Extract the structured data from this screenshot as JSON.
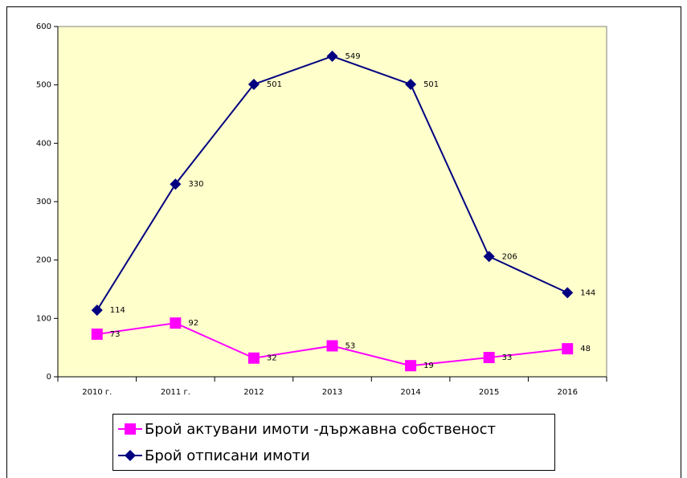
{
  "chart_data": {
    "type": "line",
    "categories": [
      "2010 г.",
      "2011 г.",
      "2012",
      "2013",
      "2014",
      "2015",
      "2016"
    ],
    "series": [
      {
        "name": "Брой актувани имоти -държавна собственост",
        "color": "#ff00ff",
        "marker": "square",
        "values": [
          73,
          92,
          32,
          53,
          19,
          33,
          48
        ]
      },
      {
        "name": "Брой отписани имоти",
        "color": "#000080",
        "marker": "diamond",
        "values": [
          114,
          330,
          501,
          549,
          501,
          206,
          144
        ]
      }
    ],
    "ylim": [
      0,
      600
    ],
    "yticks": [
      0,
      100,
      200,
      300,
      400,
      500,
      600
    ],
    "grid": false,
    "legend": "bottom",
    "background": "#ffffcc"
  }
}
